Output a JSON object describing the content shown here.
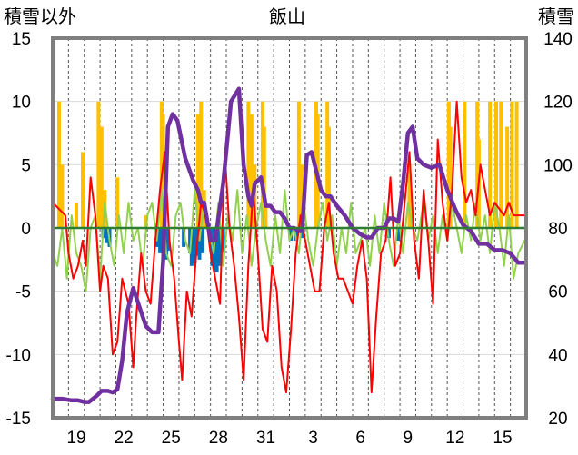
{
  "chart_data": {
    "type": "line",
    "title": "飯山",
    "ylabel_left": "積雪以外",
    "ylabel_right": "積雪",
    "x_ticks": [
      "19",
      "22",
      "25",
      "28",
      "31",
      "3",
      "6",
      "9",
      "12",
      "15"
    ],
    "x_domain": [
      0,
      30
    ],
    "x_tick_positions": [
      1.5,
      4.5,
      7.5,
      10.5,
      13.5,
      16.5,
      19.5,
      22.5,
      25.5,
      28.5
    ],
    "y_left": {
      "lim": [
        -15,
        15
      ],
      "ticks": [
        15,
        10,
        5,
        0,
        -5,
        -10,
        -15
      ]
    },
    "y_right": {
      "lim": [
        20,
        140
      ],
      "ticks": [
        140,
        120,
        100,
        80,
        60,
        40,
        20
      ]
    },
    "grid": {
      "vertical": "dashed",
      "horizontal": "light"
    },
    "colors": {
      "snow_depth": "#7030a0",
      "temperature": "#ff0000",
      "green_series": "#92d050",
      "precipitation": "#ffc000",
      "blue_bars": "#0070c0",
      "zero_line": "#2e7d32",
      "frame": "#7f7f7f"
    },
    "series": [
      {
        "key": "snow_depth",
        "axis": "right",
        "style": "line",
        "x": [
          0.0,
          0.6,
          1.2,
          1.6,
          2.0,
          2.3,
          2.8,
          3.1,
          3.5,
          3.8,
          4.1,
          4.4,
          4.7,
          5.1,
          5.5,
          5.9,
          6.3,
          6.7,
          7.0,
          7.3,
          7.6,
          7.9,
          8.4,
          8.9,
          9.2,
          9.4,
          9.6,
          10.0,
          10.3,
          10.8,
          11.3,
          11.8,
          12.1,
          12.4,
          12.6,
          12.8,
          13.2,
          13.5,
          13.8,
          14.1,
          14.4,
          14.7,
          15.0,
          15.3,
          15.6,
          15.8,
          16.1,
          16.4,
          16.7,
          17.0,
          17.3,
          17.6,
          18.0,
          18.5,
          19.0,
          19.5,
          19.9,
          20.2,
          20.6,
          21.0,
          21.3,
          21.6,
          21.9,
          22.2,
          22.5,
          22.8,
          23.1,
          23.5,
          24.0,
          24.5,
          25.0,
          25.5,
          26.0,
          26.5,
          27.0,
          27.5,
          28.0,
          28.5,
          29.0,
          29.5,
          29.9
        ],
        "values": [
          26,
          26,
          25.5,
          25.5,
          25,
          25,
          27,
          28.5,
          28.5,
          28,
          29,
          38,
          53,
          61,
          55,
          49,
          47,
          47,
          70,
          112,
          116,
          114,
          102,
          95,
          92,
          88,
          88,
          76,
          76,
          94,
          120,
          124,
          100,
          90,
          87,
          94,
          96,
          87,
          87,
          85,
          85,
          83,
          80,
          80,
          79,
          79,
          103,
          104,
          98,
          92,
          90,
          90,
          87,
          84,
          80,
          78,
          77,
          77,
          80,
          80,
          83,
          83,
          82,
          94,
          110,
          112,
          102,
          100,
          99,
          100,
          92,
          86,
          81,
          79,
          75,
          75,
          73,
          73,
          72,
          69,
          69
        ]
      },
      {
        "key": "temperature",
        "axis": "left",
        "style": "jagged",
        "x": [
          0.0,
          0.4,
          0.8,
          1.0,
          1.3,
          1.6,
          1.9,
          2.1,
          2.4,
          2.7,
          3.0,
          3.2,
          3.5,
          3.8,
          4.1,
          4.4,
          4.8,
          5.1,
          5.3,
          5.6,
          5.9,
          6.2,
          6.5,
          6.8,
          7.1,
          7.4,
          7.7,
          8.0,
          8.2,
          8.5,
          8.8,
          9.1,
          9.4,
          9.7,
          10.0,
          10.3,
          10.6,
          10.9,
          11.2,
          11.5,
          11.8,
          12.1,
          12.4,
          12.7,
          13.0,
          13.3,
          13.6,
          13.9,
          14.2,
          14.5,
          14.8,
          15.1,
          15.4,
          15.7,
          16.0,
          16.3,
          16.6,
          16.9,
          17.2,
          17.5,
          17.8,
          18.1,
          18.4,
          18.7,
          19.0,
          19.3,
          19.6,
          19.9,
          20.2,
          20.5,
          20.8,
          21.1,
          21.4,
          21.7,
          22.0,
          22.3,
          22.6,
          22.9,
          23.2,
          23.5,
          23.8,
          24.1,
          24.4,
          24.7,
          25.0,
          25.3,
          25.6,
          25.9,
          26.2,
          26.5,
          26.8,
          27.1,
          27.4,
          27.7,
          28.0,
          28.3,
          28.6,
          28.9,
          29.2,
          29.5,
          29.9
        ],
        "values": [
          2,
          1.5,
          1,
          -2,
          -4,
          -3,
          -1,
          -3,
          4,
          1,
          -5,
          -3,
          -4,
          -10,
          -9,
          -4,
          -6,
          -11,
          -7,
          -2,
          -5,
          -6,
          -1,
          3,
          6,
          -1,
          -4,
          -9,
          -12,
          -5,
          -7,
          -2,
          2,
          1,
          -2,
          -4,
          -6,
          6,
          0,
          -3,
          -7,
          -12,
          -3,
          3,
          -2,
          -8,
          -9,
          -3,
          -5,
          -11,
          -13,
          -8,
          -2,
          1,
          -1,
          -3,
          -5,
          -5,
          0,
          2,
          -2,
          -4,
          -4,
          -5,
          -6,
          -3,
          -1,
          -4,
          -13,
          -7,
          -2,
          -1,
          4,
          -3,
          -2,
          2,
          6,
          -1,
          -4,
          3,
          -1,
          -6,
          7,
          2,
          -1,
          3,
          10,
          4,
          2,
          3,
          1,
          5,
          3,
          1,
          2,
          1.5,
          1,
          2,
          1,
          1,
          1
        ]
      },
      {
        "key": "green_series",
        "axis": "left",
        "style": "jagged",
        "x": [
          0.0,
          0.3,
          0.6,
          0.9,
          1.2,
          1.5,
          1.8,
          2.1,
          2.4,
          2.7,
          3.0,
          3.3,
          3.6,
          3.9,
          4.2,
          4.5,
          4.8,
          5.1,
          5.4,
          5.7,
          6.0,
          6.3,
          6.6,
          6.9,
          7.2,
          7.5,
          7.8,
          8.1,
          8.4,
          8.7,
          9.0,
          9.3,
          9.6,
          9.9,
          10.2,
          10.5,
          10.8,
          11.1,
          11.4,
          11.7,
          12.0,
          12.3,
          12.6,
          12.9,
          13.2,
          13.5,
          13.8,
          14.1,
          14.4,
          14.7,
          15.0,
          15.3,
          15.6,
          15.9,
          16.2,
          16.5,
          16.8,
          17.1,
          17.4,
          17.7,
          18.0,
          18.3,
          18.6,
          18.9,
          19.2,
          19.5,
          19.8,
          20.1,
          20.4,
          20.7,
          21.0,
          21.3,
          21.6,
          21.9,
          22.2,
          22.5,
          22.8,
          23.1,
          23.5,
          23.8,
          24.1,
          24.4,
          24.7,
          25.0,
          25.3,
          25.6,
          25.9,
          26.2,
          26.5,
          26.8,
          27.1,
          27.4,
          27.7,
          28.0,
          28.3,
          28.6,
          28.9,
          29.2,
          29.5,
          29.9
        ],
        "values": [
          -2,
          -3,
          0,
          -4,
          1,
          -2,
          -3,
          -5,
          0,
          1,
          -4,
          2,
          -1,
          -3,
          1,
          -2,
          2,
          -1,
          0,
          -3,
          1,
          2,
          -1,
          3,
          -2,
          -3,
          1,
          2,
          -1,
          -2,
          3,
          -1,
          2,
          0,
          -2,
          2,
          -3,
          1,
          -1,
          3,
          -2,
          1,
          -3,
          0,
          2,
          -1,
          -3,
          1,
          -2,
          3,
          -1,
          0,
          -2,
          2,
          -1,
          -3,
          0,
          2,
          -1,
          1,
          -3,
          0,
          -2,
          2,
          -2,
          -1,
          0,
          -3,
          1,
          -2,
          2,
          -1,
          -3,
          1,
          -2,
          2,
          0,
          -1,
          2,
          -1,
          1,
          -2,
          1,
          -1,
          2,
          0,
          -2,
          1,
          -1,
          2,
          -1,
          1,
          -2,
          2,
          0,
          -3,
          1,
          -4,
          -2,
          -1
        ]
      },
      {
        "key": "precipitation",
        "axis": "left",
        "style": "bars",
        "x": [
          0.4,
          0.6,
          1.5,
          1.9,
          2.9,
          3.1,
          3.3,
          4.1,
          5.9,
          6.9,
          7.0,
          7.1,
          9.2,
          9.4,
          9.6,
          9.7,
          12.4,
          12.6,
          12.8,
          13.3,
          13.4,
          13.5,
          15.6,
          15.8,
          16.7,
          16.8,
          17.4,
          17.5,
          22.6,
          22.7,
          25.1,
          25.2,
          26.1,
          26.9,
          27.0,
          27.7,
          28.1,
          28.4,
          28.8,
          29.1,
          29.4
        ],
        "values": [
          10,
          5,
          2,
          6,
          10,
          8,
          3,
          4,
          1,
          10,
          9,
          5,
          9,
          10,
          3,
          1,
          10,
          9,
          5,
          10,
          8,
          2,
          10,
          5,
          10,
          9,
          10,
          8,
          5,
          3,
          10,
          8,
          10,
          10,
          7,
          10,
          10,
          10,
          8,
          10,
          10
        ]
      },
      {
        "key": "blue_bars",
        "axis": "left",
        "style": "bars",
        "x": [
          3.2,
          3.4,
          3.6,
          6.6,
          6.8,
          7.0,
          7.2,
          7.3,
          8.3,
          8.7,
          8.8,
          9.0,
          9.2,
          9.3,
          9.5,
          10.1,
          10.3,
          10.4,
          10.6,
          10.8,
          15.1,
          15.4,
          15.8,
          21.3,
          21.9
        ],
        "values": [
          -0.8,
          -1.2,
          -1.5,
          -1.5,
          -2,
          -3,
          -2.5,
          -1.8,
          -1.5,
          -2,
          -3,
          -2.8,
          -2.2,
          -2.5,
          -2,
          -3,
          -3.5,
          -3.5,
          -3,
          -2,
          -1,
          -1,
          -0.8,
          -0.8,
          -1
        ]
      }
    ]
  }
}
